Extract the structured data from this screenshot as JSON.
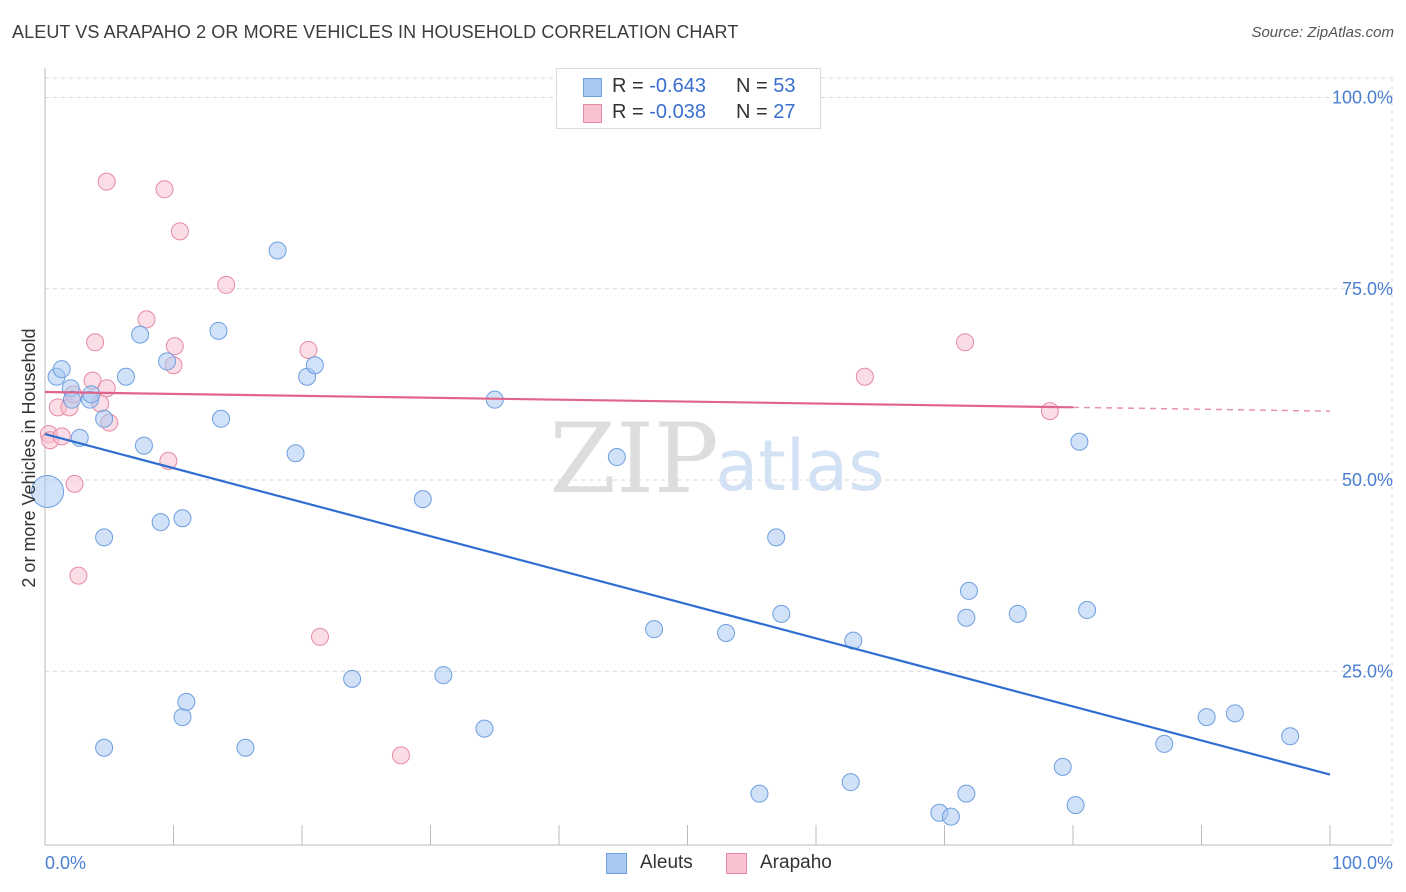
{
  "header": {
    "title": "ALEUT VS ARAPAHO 2 OR MORE VEHICLES IN HOUSEHOLD CORRELATION CHART",
    "source": "Source: ZipAtlas.com"
  },
  "watermark": {
    "zip": "ZIP",
    "atlas": "atlas"
  },
  "stats_legend": [
    {
      "r_label": "R = ",
      "r_value": "-0.643",
      "n_label": "N = ",
      "n_value": "53",
      "color": "#a9c8f2",
      "border": "#6e9fe0"
    },
    {
      "r_label": "R = ",
      "r_value": "-0.038",
      "n_label": "N = ",
      "n_value": "27",
      "color": "#f7c1d0",
      "border": "#e68aa5"
    }
  ],
  "bottom_legend": [
    {
      "label": "Aleuts",
      "color": "#a9c8f2",
      "border": "#6e9fe0"
    },
    {
      "label": "Arapaho",
      "color": "#f7c1d0",
      "border": "#e68aa5"
    }
  ],
  "colors": {
    "aleut_line": "#2f6fd1",
    "arapaho_line": "#e0648c",
    "axis_text": "#4a7fd1",
    "grid": "#d9d9d9"
  },
  "chart_data": {
    "type": "scatter",
    "title": "ALEUT VS ARAPAHO 2 OR MORE VEHICLES IN HOUSEHOLD CORRELATION CHART",
    "xlabel": "",
    "ylabel": "2 or more Vehicles in Household",
    "xlim": [
      0,
      100
    ],
    "ylim": [
      0,
      100
    ],
    "x_tick_labels": [
      "0.0%",
      "100.0%"
    ],
    "y_ticks": [
      25,
      50,
      75,
      100
    ],
    "y_tick_labels": [
      "25.0%",
      "50.0%",
      "75.0%",
      "100.0%"
    ],
    "series": [
      {
        "name": "Aleuts",
        "color": "#a9c8f2",
        "stroke": "#6e9fe0",
        "points": [
          [
            0.2,
            48.5,
            "large"
          ],
          [
            0.9,
            63.5
          ],
          [
            1.3,
            64.5
          ],
          [
            2.0,
            62.0
          ],
          [
            2.1,
            60.5
          ],
          [
            2.7,
            55.5
          ],
          [
            3.5,
            60.5
          ],
          [
            3.6,
            61.2
          ],
          [
            4.6,
            58.0
          ],
          [
            4.6,
            42.5
          ],
          [
            4.6,
            15.0
          ],
          [
            6.3,
            63.5
          ],
          [
            7.4,
            69.0
          ],
          [
            7.7,
            54.5
          ],
          [
            9.0,
            44.5
          ],
          [
            9.5,
            65.5
          ],
          [
            10.7,
            45.0
          ],
          [
            10.7,
            19.0
          ],
          [
            11.0,
            21.0
          ],
          [
            13.5,
            69.5
          ],
          [
            13.7,
            58.0
          ],
          [
            15.6,
            15.0
          ],
          [
            18.1,
            80.0
          ],
          [
            19.5,
            53.5
          ],
          [
            20.4,
            63.5
          ],
          [
            21.0,
            65.0
          ],
          [
            23.9,
            24.0
          ],
          [
            29.4,
            47.5
          ],
          [
            31.0,
            24.5
          ],
          [
            34.2,
            17.5
          ],
          [
            35.0,
            60.5
          ],
          [
            44.5,
            53.0
          ],
          [
            47.4,
            30.5
          ],
          [
            53.0,
            30.0
          ],
          [
            55.6,
            9.0
          ],
          [
            56.9,
            42.5
          ],
          [
            57.3,
            32.5
          ],
          [
            62.7,
            10.5
          ],
          [
            62.9,
            29.0
          ],
          [
            69.6,
            6.5
          ],
          [
            70.5,
            6.0
          ],
          [
            71.7,
            9.0
          ],
          [
            71.7,
            32.0
          ],
          [
            71.9,
            35.5
          ],
          [
            75.7,
            32.5
          ],
          [
            79.2,
            12.5
          ],
          [
            80.2,
            7.5
          ],
          [
            80.5,
            55.0
          ],
          [
            81.1,
            33.0
          ],
          [
            87.1,
            15.5
          ],
          [
            90.4,
            19.0
          ],
          [
            92.6,
            19.5
          ],
          [
            96.9,
            16.5
          ]
        ],
        "trend": {
          "x": [
            0,
            100
          ],
          "y": [
            56.0,
            11.5
          ]
        }
      },
      {
        "name": "Arapaho",
        "color": "#f7c1d0",
        "stroke": "#e68aa5",
        "points": [
          [
            0.3,
            56.0
          ],
          [
            0.4,
            55.2
          ],
          [
            1.0,
            59.5
          ],
          [
            1.3,
            55.7
          ],
          [
            1.9,
            59.5
          ],
          [
            2.2,
            61.2
          ],
          [
            2.3,
            49.5
          ],
          [
            2.6,
            37.5
          ],
          [
            3.7,
            63.0
          ],
          [
            3.9,
            68.0
          ],
          [
            4.3,
            60.0
          ],
          [
            4.8,
            62.0
          ],
          [
            5.0,
            57.5
          ],
          [
            4.8,
            89.0
          ],
          [
            7.9,
            71.0
          ],
          [
            9.3,
            88.0
          ],
          [
            9.6,
            52.5
          ],
          [
            10.0,
            65.0
          ],
          [
            10.1,
            67.5
          ],
          [
            10.5,
            82.5
          ],
          [
            14.1,
            75.5
          ],
          [
            20.5,
            67.0
          ],
          [
            21.4,
            29.5
          ],
          [
            27.7,
            14.0
          ],
          [
            63.8,
            63.5
          ],
          [
            71.6,
            68.0
          ],
          [
            78.2,
            59.0
          ]
        ],
        "trend": {
          "x": [
            0,
            80
          ],
          "y": [
            61.5,
            59.5
          ],
          "dashed_extension": {
            "x": [
              80,
              100
            ],
            "y": [
              59.5,
              59.0
            ]
          }
        }
      }
    ]
  }
}
